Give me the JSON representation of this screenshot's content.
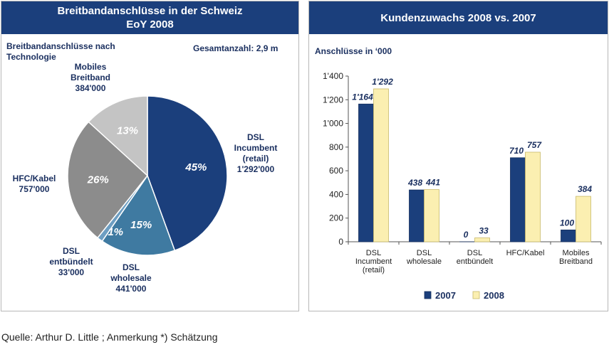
{
  "left_panel": {
    "title_line1": "Breitbandanschlüsse in der Schweiz",
    "title_line2": "EoY 2008",
    "subtitle_line1": "Breitbandanschlüsse nach",
    "subtitle_line2": "Technologie",
    "total_label": "Gesamtanzahl: 2,9 m"
  },
  "right_panel": {
    "title": "Kundenzuwachs 2008 vs. 2007",
    "unit_label": "Anschlüsse in ‘000"
  },
  "source_note": "Quelle: Arthur D. Little ; Anmerkung *) Schätzung",
  "colors": {
    "header": "#1b3f7c",
    "dark_blue": "#1b3f7c",
    "light_yellow": "#fbefb1",
    "text": "#1b3060"
  },
  "chart_data": [
    {
      "type": "pie",
      "slices": [
        {
          "label_lines": [
            "DSL",
            "Incumbent",
            "(retail)",
            "1'292'000"
          ],
          "value": 1292000,
          "percent": 45,
          "percent_label": "45%",
          "color": "#1b3f7c"
        },
        {
          "label_lines": [
            "DSL",
            "wholesale",
            "441'000"
          ],
          "value": 441000,
          "percent": 15,
          "percent_label": "15%",
          "color": "#3f7aa1"
        },
        {
          "label_lines": [
            "DSL",
            "entbündelt",
            "33'000"
          ],
          "value": 33000,
          "percent": 1,
          "percent_label": "1%",
          "color": "#6d9ec2"
        },
        {
          "label_lines": [
            "HFC/Kabel",
            "757'000"
          ],
          "value": 757000,
          "percent": 26,
          "percent_label": "26%",
          "color": "#8c8c8c"
        },
        {
          "label_lines": [
            "Mobiles",
            "Breitband",
            "384'000"
          ],
          "value": 384000,
          "percent": 13,
          "percent_label": "13%",
          "color": "#c4c4c4"
        }
      ]
    },
    {
      "type": "bar",
      "categories": [
        [
          "DSL",
          "Incumbent",
          "(retail)"
        ],
        [
          "DSL",
          "wholesale"
        ],
        [
          "DSL",
          "entbündelt"
        ],
        [
          "HFC/Kabel"
        ],
        [
          "Mobiles",
          "Breitband"
        ]
      ],
      "series": [
        {
          "name": "2007",
          "values": [
            1164,
            438,
            0,
            710,
            100
          ],
          "labels": [
            "1'164",
            "438",
            "0",
            "710",
            "100"
          ],
          "color": "#1b3f7c"
        },
        {
          "name": "2008",
          "values": [
            1292,
            441,
            33,
            757,
            384
          ],
          "labels": [
            "1'292",
            "441",
            "33",
            "757",
            "384"
          ],
          "color": "#fbefb1"
        }
      ],
      "annotation": "*)",
      "y_ticks": [
        "0",
        "200",
        "400",
        "600",
        "800",
        "1'000",
        "1'200",
        "1'400"
      ],
      "ylim": [
        0,
        1400
      ],
      "legend_position": "bottom",
      "grid": false
    }
  ]
}
